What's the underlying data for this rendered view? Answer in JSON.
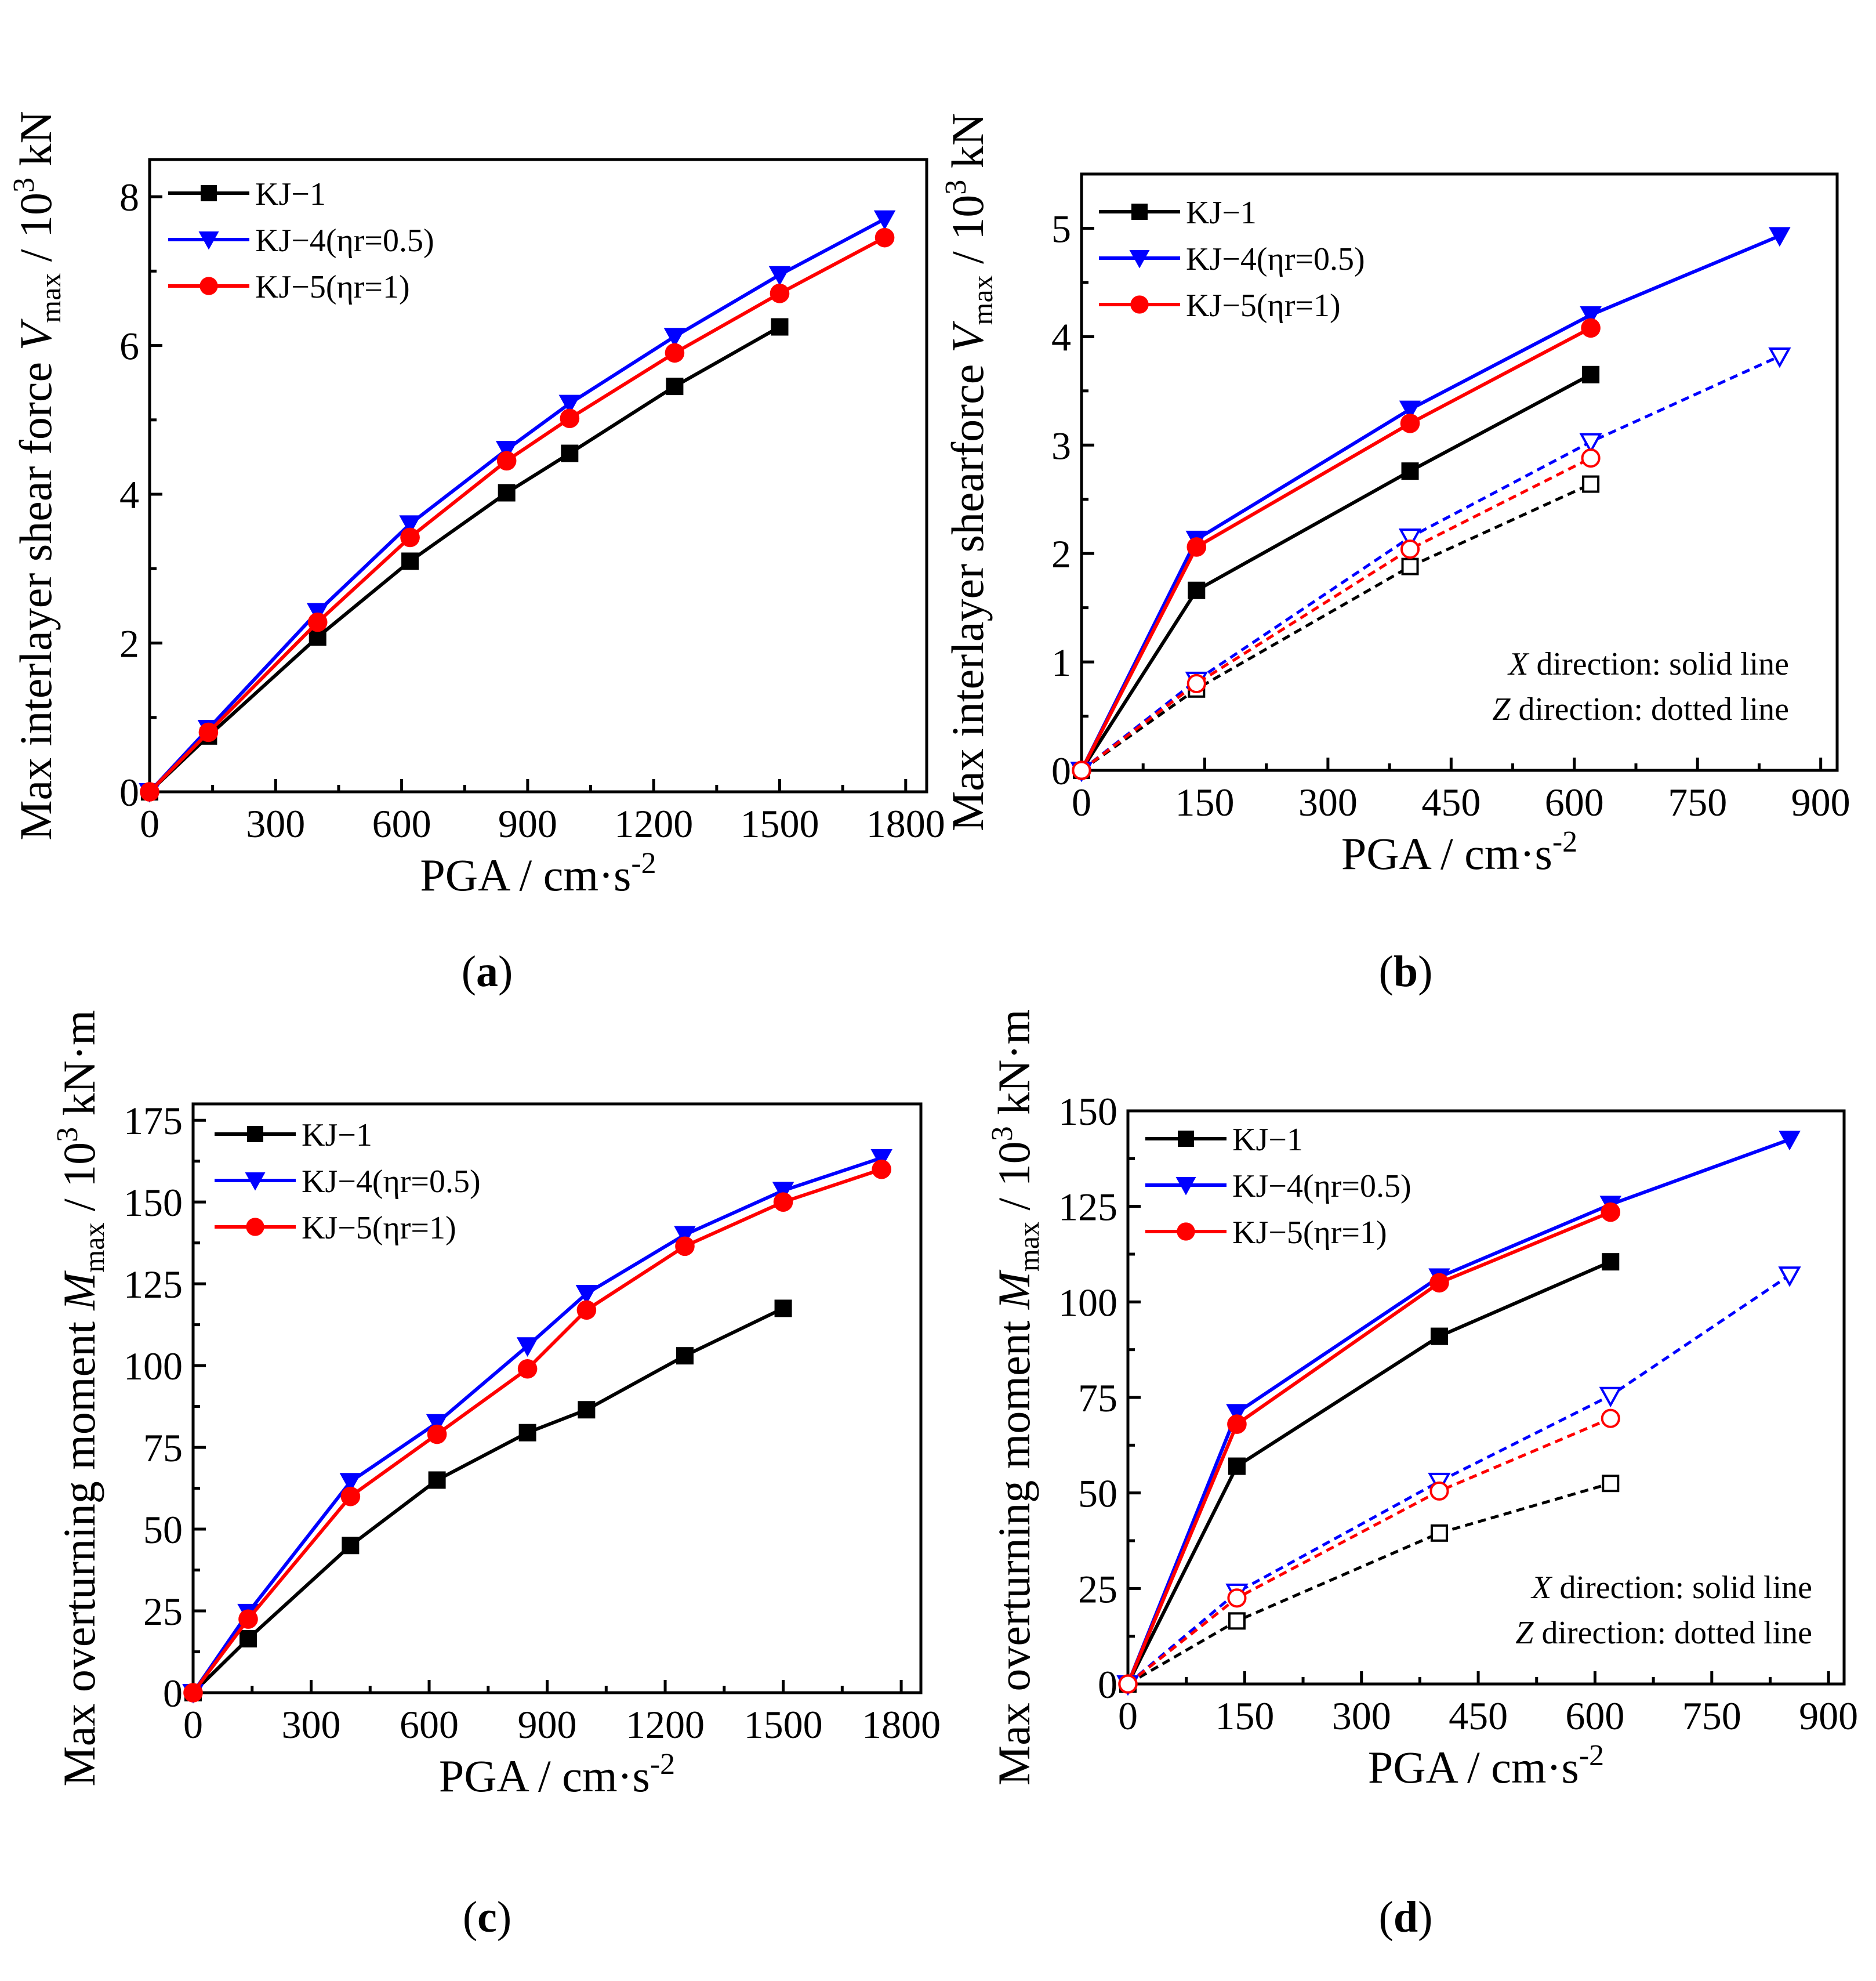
{
  "figure": {
    "panels": [
      {
        "id": "a",
        "caption": {
          "open": "(",
          "letter": "a",
          "close": ")"
        },
        "xlabel": "PGA / cm·s",
        "xlabel_sup": "-2",
        "ylabel": {
          "prefix": "Max interlayer shear force ",
          "symbol": "V",
          "sub": "max",
          "suffix": " / 10",
          "sup": "3",
          "unit": " kN"
        },
        "note": null
      },
      {
        "id": "b",
        "caption": {
          "open": "(",
          "letter": "b",
          "close": ")"
        },
        "xlabel": "PGA / cm·s",
        "xlabel_sup": "-2",
        "ylabel": {
          "prefix": "Max interlayer shearforce ",
          "symbol": "V",
          "sub": "max",
          "suffix": " / 10",
          "sup": "3",
          "unit": " kN"
        },
        "note": {
          "line1": {
            "axis": "X",
            "text": " direction: solid line"
          },
          "line2": {
            "axis": "Z",
            "text": " direction: dotted line"
          }
        }
      },
      {
        "id": "c",
        "caption": {
          "open": "(",
          "letter": "c",
          "close": ")"
        },
        "xlabel": "PGA / cm·s",
        "xlabel_sup": "-2",
        "ylabel": {
          "prefix": "Max overturning moment ",
          "symbol": "M",
          "sub": "max",
          "suffix": " / 10",
          "sup": "3",
          "unit": " kN·m"
        },
        "note": null
      },
      {
        "id": "d",
        "caption": {
          "open": "(",
          "letter": "d",
          "close": ")"
        },
        "xlabel": "PGA / cm·s",
        "xlabel_sup": "-2",
        "ylabel": {
          "prefix": "Max overturning moment ",
          "symbol": "M",
          "sub": "max",
          "suffix": " / 10",
          "sup": "3",
          "unit": " kN·m"
        },
        "note": {
          "line1": {
            "axis": "X",
            "text": " direction: solid line"
          },
          "line2": {
            "axis": "Z",
            "text": " direction: dotted line"
          }
        }
      }
    ]
  },
  "chart_data": [
    {
      "type": "line",
      "panel": "a",
      "xlim": [
        0,
        1850
      ],
      "ylim": [
        0,
        8.5
      ],
      "xticks": [
        0,
        300,
        600,
        900,
        1200,
        1500,
        1800
      ],
      "yticks": [
        0,
        2,
        4,
        6,
        8
      ],
      "legend_position": "top-left",
      "series": [
        {
          "name": "KJ−1",
          "color": "#000000",
          "marker": "square",
          "style": "solid",
          "x": [
            0,
            140,
            400,
            620,
            850,
            1000,
            1250,
            1500
          ],
          "y": [
            0,
            0.75,
            2.08,
            3.1,
            4.02,
            4.55,
            5.45,
            6.25
          ]
        },
        {
          "name": "KJ−4(ηr=0.5)",
          "color": "#0000ff",
          "marker": "triangle-down",
          "style": "solid",
          "x": [
            0,
            140,
            400,
            620,
            850,
            1000,
            1250,
            1500,
            1750
          ],
          "y": [
            0,
            0.85,
            2.42,
            3.6,
            4.6,
            5.22,
            6.12,
            6.95,
            7.7
          ]
        },
        {
          "name": "KJ−5(ηr=1)",
          "color": "#ff0000",
          "marker": "circle",
          "style": "solid",
          "x": [
            0,
            140,
            400,
            620,
            850,
            1000,
            1250,
            1500,
            1750
          ],
          "y": [
            0,
            0.8,
            2.28,
            3.42,
            4.45,
            5.02,
            5.9,
            6.7,
            7.45
          ]
        }
      ]
    },
    {
      "type": "line",
      "panel": "b",
      "xlim": [
        0,
        920
      ],
      "ylim": [
        0,
        5.5
      ],
      "xticks": [
        0,
        150,
        300,
        450,
        600,
        750,
        900
      ],
      "yticks": [
        0,
        1,
        2,
        3,
        4,
        5
      ],
      "legend_position": "top-left",
      "series": [
        {
          "name": "KJ−1",
          "color": "#000000",
          "marker": "square",
          "style": "solid",
          "x": [
            0,
            140,
            400,
            620
          ],
          "y": [
            0,
            1.66,
            2.76,
            3.65
          ]
        },
        {
          "name": "KJ−4(ηr=0.5)",
          "color": "#0000ff",
          "marker": "triangle-down",
          "style": "solid",
          "x": [
            0,
            140,
            400,
            620,
            850
          ],
          "y": [
            0,
            2.13,
            3.33,
            4.2,
            4.93
          ]
        },
        {
          "name": "KJ−5(ηr=1)",
          "color": "#ff0000",
          "marker": "circle",
          "style": "solid",
          "x": [
            0,
            140,
            400,
            620
          ],
          "y": [
            0,
            2.06,
            3.2,
            4.08
          ]
        },
        {
          "name": "KJ−1",
          "color": "#000000",
          "marker": "square-open",
          "style": "dotted",
          "in_legend": false,
          "x": [
            0,
            140,
            400,
            620
          ],
          "y": [
            0,
            0.75,
            1.88,
            2.64
          ]
        },
        {
          "name": "KJ−4(ηr=0.5)",
          "color": "#0000ff",
          "marker": "triangle-down-open",
          "style": "dotted",
          "in_legend": false,
          "x": [
            0,
            140,
            400,
            620,
            850
          ],
          "y": [
            0,
            0.83,
            2.15,
            3.03,
            3.82
          ]
        },
        {
          "name": "KJ−5(ηr=1)",
          "color": "#ff0000",
          "marker": "circle-open",
          "style": "dotted",
          "in_legend": false,
          "x": [
            0,
            140,
            400,
            620
          ],
          "y": [
            0,
            0.8,
            2.04,
            2.88
          ]
        }
      ]
    },
    {
      "type": "line",
      "panel": "c",
      "xlim": [
        0,
        1850
      ],
      "ylim": [
        0,
        180
      ],
      "xticks": [
        0,
        300,
        600,
        900,
        1200,
        1500,
        1800
      ],
      "yticks": [
        0,
        25,
        50,
        75,
        100,
        125,
        150,
        175
      ],
      "legend_position": "top-left",
      "series": [
        {
          "name": "KJ−1",
          "color": "#000000",
          "marker": "square",
          "style": "solid",
          "x": [
            0,
            140,
            400,
            620,
            850,
            1000,
            1250,
            1500
          ],
          "y": [
            0,
            16.5,
            45,
            65,
            79.5,
            86.5,
            103,
            117.5
          ]
        },
        {
          "name": "KJ−4(ηr=0.5)",
          "color": "#0000ff",
          "marker": "triangle-down",
          "style": "solid",
          "x": [
            0,
            140,
            400,
            620,
            850,
            1000,
            1250,
            1500,
            1750
          ],
          "y": [
            0,
            24.5,
            64.5,
            82.5,
            106,
            122,
            140,
            153.5,
            163.5
          ]
        },
        {
          "name": "KJ−5(ηr=1)",
          "color": "#ff0000",
          "marker": "circle",
          "style": "solid",
          "x": [
            0,
            140,
            400,
            620,
            850,
            1000,
            1250,
            1500,
            1750
          ],
          "y": [
            0,
            22.5,
            60,
            79,
            99,
            117,
            136.5,
            150,
            160
          ]
        }
      ]
    },
    {
      "type": "line",
      "panel": "d",
      "xlim": [
        0,
        920
      ],
      "ylim": [
        0,
        150
      ],
      "xticks": [
        0,
        150,
        300,
        450,
        600,
        750,
        900
      ],
      "yticks": [
        0,
        25,
        50,
        75,
        100,
        125,
        150
      ],
      "legend_position": "top-left",
      "series": [
        {
          "name": "KJ−1",
          "color": "#000000",
          "marker": "square",
          "style": "solid",
          "x": [
            0,
            140,
            400,
            620
          ],
          "y": [
            0,
            57,
            91,
            110.5
          ]
        },
        {
          "name": "KJ−4(ηr=0.5)",
          "color": "#0000ff",
          "marker": "triangle-down",
          "style": "solid",
          "x": [
            0,
            140,
            400,
            620,
            850
          ],
          "y": [
            0,
            71,
            106.5,
            125.5,
            142.5
          ]
        },
        {
          "name": "KJ−5(ηr=1)",
          "color": "#ff0000",
          "marker": "circle",
          "style": "solid",
          "x": [
            0,
            140,
            400,
            620
          ],
          "y": [
            0,
            68,
            105,
            123.5
          ]
        },
        {
          "name": "KJ−1",
          "color": "#000000",
          "marker": "square-open",
          "style": "dotted",
          "in_legend": false,
          "x": [
            0,
            140,
            400,
            620
          ],
          "y": [
            0,
            16.5,
            39.5,
            52.5
          ]
        },
        {
          "name": "KJ−4(ηr=0.5)",
          "color": "#0000ff",
          "marker": "triangle-down-open",
          "style": "dotted",
          "in_legend": false,
          "x": [
            0,
            140,
            400,
            620,
            850
          ],
          "y": [
            0,
            24,
            53,
            75.5,
            107
          ]
        },
        {
          "name": "KJ−5(ηr=1)",
          "color": "#ff0000",
          "marker": "circle-open",
          "style": "dotted",
          "in_legend": false,
          "x": [
            0,
            140,
            400,
            620
          ],
          "y": [
            0,
            22.5,
            50.5,
            69.5
          ]
        }
      ]
    }
  ]
}
